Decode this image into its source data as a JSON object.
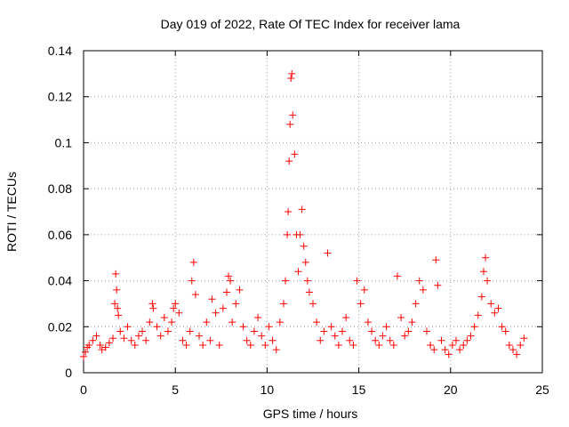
{
  "chart_data": {
    "type": "scatter",
    "title": "Day 019 of 2022, Rate Of TEC Index for receiver lama",
    "xlabel": "GPS time / hours",
    "ylabel": "ROTI / TECUs",
    "xlim": [
      0,
      25
    ],
    "ylim": [
      0,
      0.14
    ],
    "x_ticks": [
      0,
      5,
      10,
      15,
      20,
      25
    ],
    "x_tick_labels": [
      "0",
      "5",
      "10",
      "15",
      "20",
      "25"
    ],
    "y_ticks": [
      0,
      0.02,
      0.04,
      0.06,
      0.08,
      0.1,
      0.12,
      0.14
    ],
    "y_tick_labels": [
      "0",
      "0.02",
      "0.04",
      "0.06",
      "0.08",
      "0.1",
      "0.12",
      "0.14"
    ],
    "grid": true,
    "marker": "+",
    "color": "#ff0000",
    "series": [
      {
        "name": "ROTI",
        "x": [
          0.0,
          0.1,
          0.2,
          0.3,
          0.5,
          0.7,
          0.9,
          1.0,
          1.2,
          1.4,
          1.6,
          1.7,
          1.75,
          1.8,
          1.85,
          1.9,
          2.0,
          2.2,
          2.4,
          2.6,
          2.8,
          3.0,
          3.2,
          3.4,
          3.6,
          3.75,
          3.8,
          4.0,
          4.2,
          4.4,
          4.6,
          4.8,
          4.9,
          5.0,
          5.2,
          5.4,
          5.6,
          5.8,
          5.9,
          6.0,
          6.1,
          6.3,
          6.5,
          6.7,
          6.9,
          7.0,
          7.2,
          7.4,
          7.6,
          7.8,
          7.9,
          8.0,
          8.1,
          8.3,
          8.5,
          8.7,
          8.9,
          9.1,
          9.3,
          9.5,
          9.7,
          9.9,
          10.1,
          10.3,
          10.5,
          10.7,
          10.9,
          11.0,
          11.1,
          11.15,
          11.2,
          11.25,
          11.3,
          11.35,
          11.4,
          11.5,
          11.6,
          11.7,
          11.8,
          11.9,
          12.0,
          12.1,
          12.2,
          12.3,
          12.5,
          12.7,
          12.9,
          13.1,
          13.3,
          13.5,
          13.7,
          13.9,
          14.1,
          14.3,
          14.5,
          14.7,
          14.9,
          15.1,
          15.3,
          15.5,
          15.7,
          15.9,
          16.1,
          16.3,
          16.5,
          16.7,
          16.9,
          17.1,
          17.3,
          17.5,
          17.7,
          17.9,
          18.1,
          18.3,
          18.5,
          18.7,
          18.9,
          19.1,
          19.2,
          19.3,
          19.5,
          19.7,
          19.9,
          20.1,
          20.3,
          20.5,
          20.7,
          20.9,
          21.1,
          21.3,
          21.5,
          21.7,
          21.8,
          21.9,
          22.0,
          22.2,
          22.4,
          22.6,
          22.8,
          23.0,
          23.2,
          23.4,
          23.6,
          23.8,
          24.0
        ],
        "values": [
          0.007,
          0.009,
          0.011,
          0.012,
          0.014,
          0.016,
          0.012,
          0.01,
          0.011,
          0.013,
          0.015,
          0.03,
          0.043,
          0.036,
          0.028,
          0.025,
          0.018,
          0.015,
          0.02,
          0.014,
          0.012,
          0.016,
          0.018,
          0.014,
          0.022,
          0.03,
          0.028,
          0.02,
          0.016,
          0.024,
          0.018,
          0.022,
          0.028,
          0.03,
          0.026,
          0.014,
          0.012,
          0.018,
          0.04,
          0.048,
          0.034,
          0.016,
          0.012,
          0.022,
          0.014,
          0.032,
          0.026,
          0.012,
          0.028,
          0.035,
          0.042,
          0.04,
          0.022,
          0.03,
          0.036,
          0.02,
          0.014,
          0.012,
          0.018,
          0.024,
          0.016,
          0.012,
          0.02,
          0.014,
          0.01,
          0.022,
          0.03,
          0.04,
          0.06,
          0.07,
          0.092,
          0.108,
          0.128,
          0.13,
          0.112,
          0.095,
          0.06,
          0.044,
          0.06,
          0.071,
          0.055,
          0.048,
          0.04,
          0.035,
          0.03,
          0.022,
          0.014,
          0.018,
          0.052,
          0.02,
          0.016,
          0.012,
          0.018,
          0.024,
          0.014,
          0.012,
          0.04,
          0.03,
          0.036,
          0.022,
          0.018,
          0.014,
          0.012,
          0.016,
          0.02,
          0.014,
          0.012,
          0.042,
          0.024,
          0.016,
          0.018,
          0.022,
          0.03,
          0.04,
          0.036,
          0.018,
          0.012,
          0.01,
          0.049,
          0.038,
          0.014,
          0.01,
          0.008,
          0.012,
          0.014,
          0.01,
          0.012,
          0.014,
          0.016,
          0.02,
          0.025,
          0.033,
          0.044,
          0.05,
          0.04,
          0.03,
          0.026,
          0.028,
          0.02,
          0.018,
          0.012,
          0.01,
          0.008,
          0.012,
          0.015
        ]
      }
    ]
  }
}
